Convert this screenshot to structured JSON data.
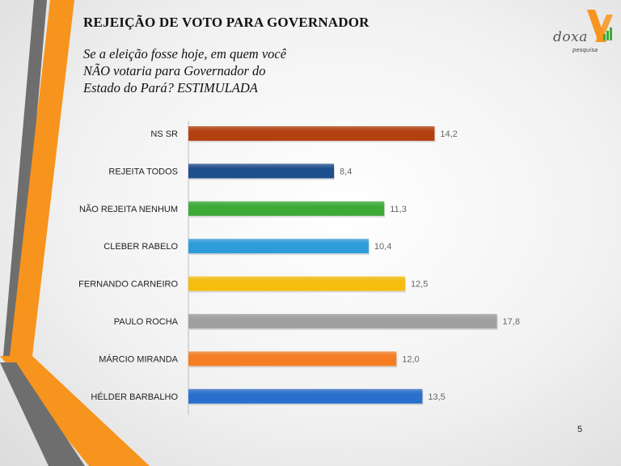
{
  "slide": {
    "title": "REJEIÇÃO DE VOTO PARA GOVERNADOR",
    "subtitle_lines": [
      "Se a eleição fosse hoje, em quem você",
      "NÃO votaria para Governador do",
      "Estado do Pará? ESTIMULADA"
    ],
    "page_number": "5"
  },
  "logo": {
    "name": "doxa",
    "tagline": "pesquisa",
    "colors": {
      "orange": "#F7941D",
      "gray": "#777777"
    }
  },
  "decor": {
    "stripe_orange": "#F7941D",
    "stripe_gray": "#6E6E6E"
  },
  "chart_data": {
    "type": "bar",
    "orientation": "horizontal",
    "categories": [
      "NS SR",
      "REJEITA TODOS",
      "NÃO REJEITA NENHUM",
      "CLEBER RABELO",
      "FERNANDO CARNEIRO",
      "PAULO ROCHA",
      "MÁRCIO MIRANDA",
      "HÉLDER BARBALHO"
    ],
    "values": [
      14.2,
      8.4,
      11.3,
      10.4,
      12.5,
      17.8,
      12.0,
      13.5
    ],
    "data_labels": [
      "14,2",
      "8,4",
      "11,3",
      "10,4",
      "12,5",
      "17,8",
      "12,0",
      "13,5"
    ],
    "colors": [
      "#B5400F",
      "#1F4E8C",
      "#3DAA38",
      "#2E9BDB",
      "#F5BD0E",
      "#A0A0A0",
      "#F57E22",
      "#2A6FCC"
    ],
    "xlim": [
      0,
      19.5
    ],
    "grid": false,
    "legend": "none"
  }
}
